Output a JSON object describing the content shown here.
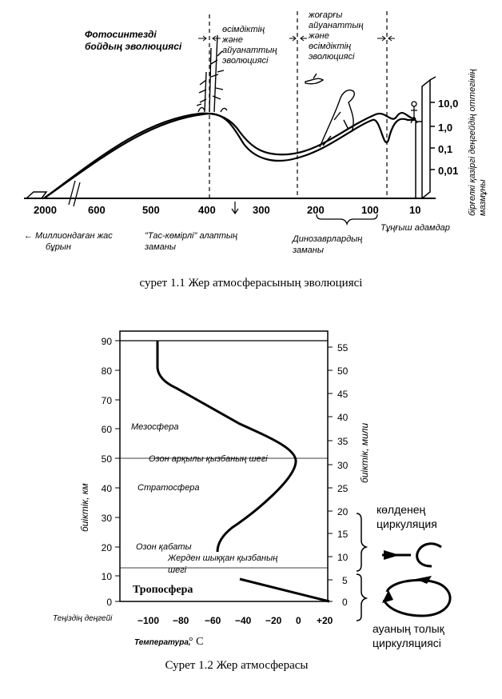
{
  "figure1": {
    "caption": "сурет 1.1 Жер атмосферасының эволюциясі",
    "labels": {
      "photosynthesis": [
        "Фотосинтезді",
        "бойдың эволюциясі"
      ],
      "plants": [
        "өсімдіктің",
        "және",
        "айуанаттың",
        "эволюциясі"
      ],
      "higher": [
        "жоғарғы",
        "айуанаттың",
        "және",
        "өсімдіктің",
        "эволюциясі"
      ],
      "million_years": "←  Миллиондаған жас",
      "million_years2": "бұрын",
      "coal": [
        "\"Тас-көмірлі\" алаптың",
        "заманы"
      ],
      "dinosaurs": [
        "Динозаврлардың",
        "заманы"
      ],
      "first_humans": "Тұңғыш адамдар",
      "right_axis": [
        "бірғелкі қазіргі деңгейдің оттегінің",
        "мазмұны"
      ]
    },
    "x_ticks": [
      "2000",
      "600",
      "500",
      "400",
      "300",
      "200",
      "100",
      "10"
    ],
    "oxygen_ticks": [
      "10,0",
      "1,0",
      "0,1",
      "0,01"
    ]
  },
  "figure2": {
    "caption": "Сурет 1.2 Жер атмосферасы",
    "left_axis_label": "биіктік, км",
    "right_axis_label": "биіктік, мили",
    "km_ticks": [
      "90",
      "80",
      "70",
      "60",
      "50",
      "40",
      "30",
      "20",
      "10",
      "0"
    ],
    "mile_ticks": [
      "55",
      "50",
      "45",
      "40",
      "35",
      "30",
      "25",
      "20",
      "15",
      "10",
      "5",
      "0"
    ],
    "temp_ticks": [
      "−100",
      "−80",
      "−60",
      "−40",
      "−20",
      "0",
      "+20"
    ],
    "sea_level": "Теңіздің деңгейі",
    "temp_label": "Температура,",
    "temp_unit": "° С",
    "layers": {
      "mesosphere": "Мезосфера",
      "ozone_heat": "Озон арқылы қызбаның шегі",
      "stratosphere": "Стратосфера",
      "ozone_layer": "Озон қабаты",
      "earth_heat": [
        "Жерден шыққан қызбаның",
        "шегі"
      ],
      "troposphere": "Тропосфера"
    },
    "circulation_top": [
      "көлденең",
      "циркуляция"
    ],
    "circulation_bottom": [
      "ауаның толық",
      "циркуляциясі"
    ]
  }
}
